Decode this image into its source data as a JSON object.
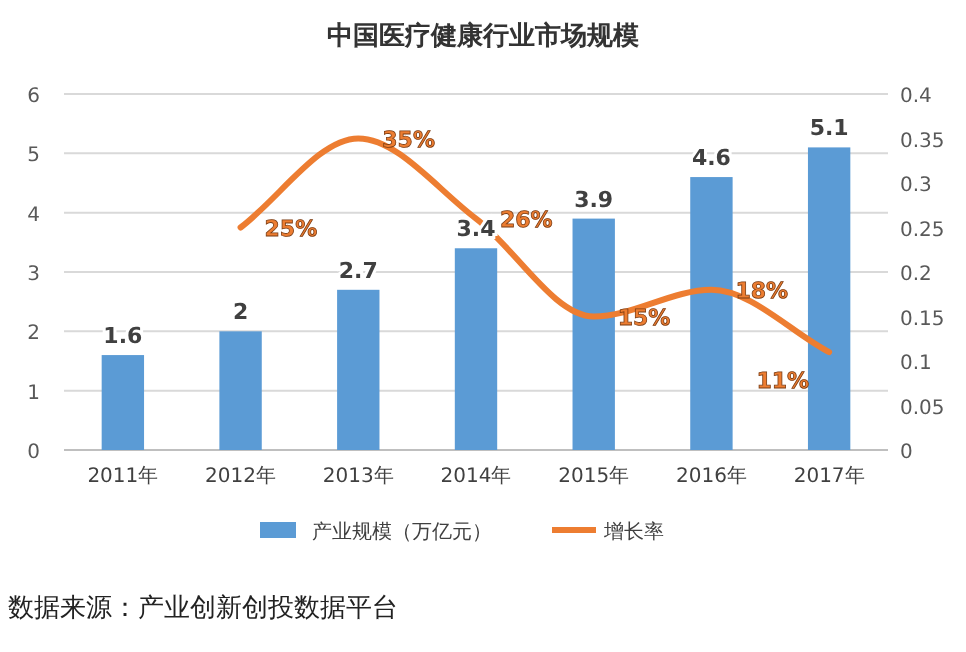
{
  "chart_data": {
    "type": "bar",
    "title": "中国医疗健康行业市场规模",
    "categories": [
      "2011年",
      "2012年",
      "2013年",
      "2014年",
      "2015年",
      "2016年",
      "2017年"
    ],
    "series": [
      {
        "name": "产业规模（万亿元）",
        "color": "#5b9bd5",
        "values": [
          1.6,
          2,
          2.7,
          3.4,
          3.9,
          4.6,
          5.1
        ],
        "value_labels": [
          "1.6",
          "2",
          "2.7",
          "3.4",
          "3.9",
          "4.6",
          "5.1"
        ]
      },
      {
        "name": "增长率",
        "type": "line",
        "axis": "y2",
        "color": "#ed7d31",
        "values": [
          null,
          0.25,
          0.35,
          0.26,
          0.15,
          0.18,
          0.11
        ],
        "value_labels": [
          null,
          "25%",
          "35%",
          "26%",
          "15%",
          "18%",
          "11%"
        ]
      }
    ],
    "ylim": [
      0,
      6
    ],
    "yticks": [
      0,
      1,
      2,
      3,
      4,
      5,
      6
    ],
    "y2lim": [
      0,
      0.4
    ],
    "y2ticks": [
      0,
      0.05,
      0.1,
      0.15,
      0.2,
      0.25,
      0.3,
      0.35,
      0.4
    ],
    "grid": "y",
    "legend": "bottom",
    "marker": "none",
    "line_style": "solid",
    "annotations": [
      "数据来源：产业创新创投数据平台"
    ]
  }
}
